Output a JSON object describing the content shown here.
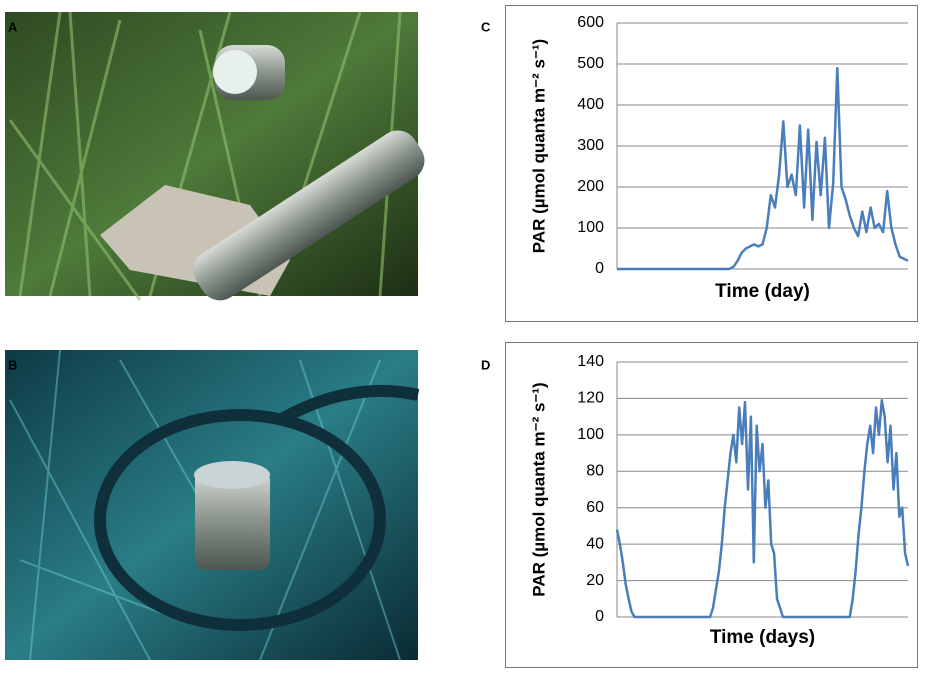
{
  "panel_labels": [
    "A",
    "B",
    "C",
    "D"
  ],
  "chart_data": [
    {
      "type": "line",
      "ylabel": "PAR (µmol quanta  m⁻² s⁻¹)",
      "xlabel": "Time (day)",
      "ylim": [
        0,
        600
      ],
      "yticks": [
        0,
        100,
        200,
        300,
        400,
        500,
        600
      ],
      "grid": true,
      "color": "#4a7ebb",
      "values": [
        0,
        0,
        0,
        0,
        0,
        0,
        0,
        0,
        0,
        0,
        0,
        0,
        0,
        0,
        0,
        0,
        0,
        0,
        0,
        0,
        0,
        0,
        0,
        0,
        0,
        0,
        0,
        0,
        5,
        20,
        40,
        50,
        55,
        60,
        55,
        60,
        100,
        180,
        150,
        230,
        360,
        200,
        230,
        180,
        350,
        150,
        340,
        120,
        310,
        180,
        320,
        100,
        210,
        490,
        200,
        170,
        130,
        100,
        80,
        140,
        90,
        150,
        100,
        110,
        90,
        190,
        100,
        60,
        30,
        25,
        20
      ]
    },
    {
      "type": "line",
      "ylabel": "PAR (µmol quanta  m⁻² s⁻¹)",
      "xlabel": "Time (days)",
      "ylim": [
        0,
        140
      ],
      "yticks": [
        0,
        20,
        40,
        60,
        80,
        100,
        120,
        140
      ],
      "grid": true,
      "color": "#4a7ebb",
      "values": [
        48,
        40,
        30,
        18,
        10,
        3,
        0,
        0,
        0,
        0,
        0,
        0,
        0,
        0,
        0,
        0,
        0,
        0,
        0,
        0,
        0,
        0,
        0,
        0,
        0,
        0,
        0,
        0,
        0,
        0,
        0,
        0,
        0,
        5,
        15,
        25,
        40,
        60,
        75,
        90,
        100,
        85,
        115,
        95,
        118,
        70,
        110,
        30,
        105,
        80,
        95,
        60,
        75,
        40,
        35,
        10,
        5,
        0,
        0,
        0,
        0,
        0,
        0,
        0,
        0,
        0,
        0,
        0,
        0,
        0,
        0,
        0,
        0,
        0,
        0,
        0,
        0,
        0,
        0,
        0,
        0,
        10,
        25,
        45,
        60,
        80,
        95,
        105,
        90,
        115,
        100,
        119,
        110,
        85,
        105,
        70,
        90,
        55,
        60,
        35,
        28
      ]
    }
  ]
}
